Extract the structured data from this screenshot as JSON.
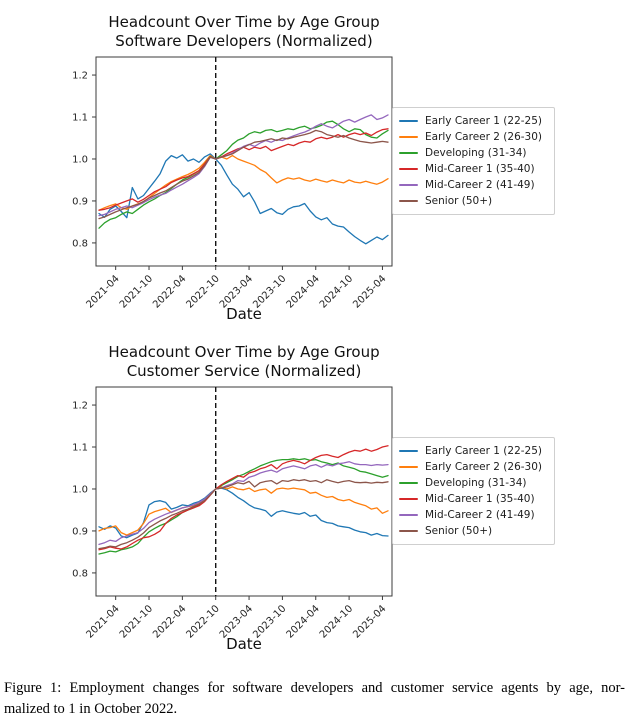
{
  "caption": {
    "line1": "Figure 1:  Employment changes for software developers and customer service agents by age, nor-",
    "line2": "malized to 1 in October 2022."
  },
  "chart_data": [
    {
      "type": "line",
      "title": "Headcount Over Time by Age Group",
      "subtitle": "Software Developers (Normalized)",
      "xlabel": "Date",
      "x_start": "2021-01",
      "x_end": "2025-05",
      "x_frequency": "monthly",
      "x_tick_labels": [
        "2021-04",
        "2021-10",
        "2022-04",
        "2022-10",
        "2023-04",
        "2023-10",
        "2024-04",
        "2024-10",
        "2025-04"
      ],
      "x_tick_indices": [
        3,
        9,
        15,
        21,
        27,
        33,
        39,
        45,
        51
      ],
      "y_tick_labels": [
        "0.8",
        "0.9",
        "1.0",
        "1.1",
        "1.2"
      ],
      "ylim": [
        0.745,
        1.243
      ],
      "grid": false,
      "legend_position": "center right",
      "vline": {
        "x_label": "2022-10",
        "x_index": 21,
        "style": "dashed",
        "color": "#111111"
      },
      "series": [
        {
          "name": "Early Career 1 (22-25)",
          "color": "#1f77b4",
          "values": [
            0.87,
            0.861,
            0.88,
            0.888,
            0.875,
            0.86,
            0.932,
            0.905,
            0.913,
            0.93,
            0.947,
            0.965,
            0.995,
            1.008,
            1.002,
            1.01,
            0.995,
            1.0,
            0.992,
            1.005,
            1.012,
            1.0,
            0.985,
            0.962,
            0.94,
            0.928,
            0.91,
            0.92,
            0.898,
            0.87,
            0.876,
            0.882,
            0.872,
            0.868,
            0.88,
            0.886,
            0.888,
            0.894,
            0.876,
            0.862,
            0.855,
            0.86,
            0.845,
            0.84,
            0.838,
            0.826,
            0.815,
            0.806,
            0.798,
            0.806,
            0.814,
            0.808,
            0.818
          ]
        },
        {
          "name": "Early Career 2 (26-30)",
          "color": "#ff7f0e",
          "values": [
            0.878,
            0.884,
            0.889,
            0.893,
            0.884,
            0.88,
            0.888,
            0.893,
            0.898,
            0.908,
            0.918,
            0.928,
            0.938,
            0.946,
            0.952,
            0.958,
            0.963,
            0.97,
            0.978,
            0.992,
            1.008,
            1.0,
            1.005,
            1.0,
            1.008,
            1.0,
            0.995,
            0.99,
            0.985,
            0.975,
            0.968,
            0.955,
            0.943,
            0.95,
            0.955,
            0.952,
            0.955,
            0.95,
            0.947,
            0.952,
            0.948,
            0.945,
            0.95,
            0.946,
            0.943,
            0.95,
            0.945,
            0.943,
            0.947,
            0.943,
            0.94,
            0.945,
            0.953
          ]
        },
        {
          "name": "Developing (31-34)",
          "color": "#2ca02c",
          "values": [
            0.835,
            0.848,
            0.856,
            0.86,
            0.868,
            0.874,
            0.87,
            0.88,
            0.89,
            0.898,
            0.905,
            0.913,
            0.92,
            0.93,
            0.94,
            0.95,
            0.956,
            0.964,
            0.972,
            0.988,
            1.006,
            1.0,
            1.01,
            1.02,
            1.035,
            1.045,
            1.05,
            1.06,
            1.065,
            1.062,
            1.068,
            1.07,
            1.065,
            1.068,
            1.072,
            1.07,
            1.075,
            1.078,
            1.072,
            1.075,
            1.08,
            1.088,
            1.09,
            1.082,
            1.072,
            1.065,
            1.072,
            1.07,
            1.058,
            1.052,
            1.05,
            1.06,
            1.068
          ]
        },
        {
          "name": "Mid-Career 1 (35-40)",
          "color": "#d62728",
          "values": [
            0.878,
            0.88,
            0.884,
            0.89,
            0.895,
            0.9,
            0.905,
            0.897,
            0.904,
            0.913,
            0.922,
            0.928,
            0.934,
            0.944,
            0.95,
            0.955,
            0.958,
            0.965,
            0.972,
            0.988,
            1.005,
            1.0,
            1.005,
            1.012,
            1.018,
            1.024,
            1.028,
            1.022,
            1.028,
            1.025,
            1.03,
            1.02,
            1.025,
            1.03,
            1.035,
            1.032,
            1.038,
            1.042,
            1.04,
            1.048,
            1.052,
            1.048,
            1.052,
            1.058,
            1.052,
            1.058,
            1.062,
            1.058,
            1.062,
            1.056,
            1.064,
            1.07,
            1.072
          ]
        },
        {
          "name": "Mid-Career 2 (41-49)",
          "color": "#9467bd",
          "values": [
            0.865,
            0.868,
            0.874,
            0.88,
            0.884,
            0.888,
            0.884,
            0.89,
            0.896,
            0.903,
            0.909,
            0.914,
            0.918,
            0.926,
            0.933,
            0.94,
            0.948,
            0.956,
            0.965,
            0.982,
            1.004,
            1.0,
            1.004,
            1.008,
            1.014,
            1.022,
            1.03,
            1.035,
            1.03,
            1.038,
            1.044,
            1.04,
            1.046,
            1.044,
            1.05,
            1.055,
            1.06,
            1.064,
            1.07,
            1.078,
            1.084,
            1.078,
            1.074,
            1.082,
            1.09,
            1.094,
            1.088,
            1.094,
            1.1,
            1.105,
            1.094,
            1.098,
            1.105
          ]
        },
        {
          "name": "Senior (50+)",
          "color": "#8c564b",
          "values": [
            0.858,
            0.862,
            0.868,
            0.874,
            0.879,
            0.884,
            0.888,
            0.892,
            0.899,
            0.907,
            0.913,
            0.919,
            0.924,
            0.932,
            0.94,
            0.947,
            0.952,
            0.96,
            0.968,
            0.984,
            1.004,
            1.0,
            1.004,
            1.008,
            1.012,
            1.02,
            1.028,
            1.034,
            1.04,
            1.042,
            1.045,
            1.048,
            1.044,
            1.05,
            1.048,
            1.052,
            1.055,
            1.058,
            1.062,
            1.068,
            1.065,
            1.058,
            1.055,
            1.052,
            1.056,
            1.05,
            1.046,
            1.042,
            1.04,
            1.038,
            1.04,
            1.042,
            1.04
          ]
        }
      ]
    },
    {
      "type": "line",
      "title": "Headcount Over Time by Age Group",
      "subtitle": "Customer Service (Normalized)",
      "xlabel": "Date",
      "x_start": "2021-01",
      "x_end": "2025-05",
      "x_frequency": "monthly",
      "x_tick_labels": [
        "2021-04",
        "2021-10",
        "2022-04",
        "2022-10",
        "2023-04",
        "2023-10",
        "2024-04",
        "2024-10",
        "2025-04"
      ],
      "x_tick_indices": [
        3,
        9,
        15,
        21,
        27,
        33,
        39,
        45,
        51
      ],
      "y_tick_labels": [
        "0.8",
        "0.9",
        "1.0",
        "1.1",
        "1.2"
      ],
      "ylim": [
        0.745,
        1.243
      ],
      "grid": false,
      "legend_position": "center right",
      "vline": {
        "x_label": "2022-10",
        "x_index": 21,
        "style": "dashed",
        "color": "#111111"
      },
      "series": [
        {
          "name": "Early Career 1 (22-25)",
          "color": "#1f77b4",
          "values": [
            0.91,
            0.904,
            0.912,
            0.907,
            0.888,
            0.884,
            0.89,
            0.895,
            0.92,
            0.962,
            0.97,
            0.972,
            0.968,
            0.952,
            0.956,
            0.962,
            0.96,
            0.966,
            0.97,
            0.978,
            0.99,
            1.0,
            1.002,
            0.998,
            0.99,
            0.98,
            0.972,
            0.962,
            0.955,
            0.952,
            0.948,
            0.935,
            0.945,
            0.948,
            0.945,
            0.942,
            0.94,
            0.944,
            0.935,
            0.938,
            0.925,
            0.92,
            0.918,
            0.912,
            0.91,
            0.908,
            0.902,
            0.898,
            0.896,
            0.89,
            0.894,
            0.889,
            0.888
          ]
        },
        {
          "name": "Early Career 2 (26-30)",
          "color": "#ff7f0e",
          "values": [
            0.9,
            0.906,
            0.908,
            0.912,
            0.896,
            0.89,
            0.896,
            0.902,
            0.918,
            0.94,
            0.946,
            0.95,
            0.954,
            0.944,
            0.95,
            0.955,
            0.958,
            0.96,
            0.965,
            0.975,
            0.988,
            1.0,
            1.005,
            1.0,
            1.005,
            1.0,
            0.998,
            1.002,
            0.994,
            0.998,
            1.0,
            0.99,
            1.0,
            1.002,
            1.0,
            1.002,
            1.0,
            0.998,
            0.99,
            0.992,
            0.985,
            0.98,
            0.982,
            0.975,
            0.972,
            0.975,
            0.968,
            0.964,
            0.96,
            0.952,
            0.955,
            0.942,
            0.948
          ]
        },
        {
          "name": "Developing (31-34)",
          "color": "#2ca02c",
          "values": [
            0.845,
            0.848,
            0.852,
            0.85,
            0.855,
            0.858,
            0.862,
            0.87,
            0.885,
            0.898,
            0.906,
            0.913,
            0.918,
            0.926,
            0.934,
            0.944,
            0.95,
            0.955,
            0.962,
            0.972,
            0.986,
            1.0,
            1.008,
            1.015,
            1.022,
            1.03,
            1.035,
            1.042,
            1.048,
            1.055,
            1.06,
            1.065,
            1.068,
            1.07,
            1.07,
            1.072,
            1.07,
            1.072,
            1.068,
            1.07,
            1.065,
            1.062,
            1.058,
            1.062,
            1.055,
            1.052,
            1.048,
            1.042,
            1.04,
            1.036,
            1.032,
            1.028,
            1.032
          ]
        },
        {
          "name": "Mid-Career 1 (35-40)",
          "color": "#d62728",
          "values": [
            0.855,
            0.858,
            0.862,
            0.859,
            0.857,
            0.862,
            0.87,
            0.878,
            0.884,
            0.886,
            0.892,
            0.9,
            0.918,
            0.93,
            0.938,
            0.944,
            0.95,
            0.955,
            0.96,
            0.97,
            0.985,
            1.0,
            1.01,
            1.018,
            1.025,
            1.032,
            1.028,
            1.038,
            1.042,
            1.048,
            1.052,
            1.058,
            1.048,
            1.06,
            1.065,
            1.068,
            1.065,
            1.06,
            1.068,
            1.075,
            1.08,
            1.082,
            1.078,
            1.075,
            1.082,
            1.088,
            1.092,
            1.09,
            1.095,
            1.09,
            1.094,
            1.1,
            1.103
          ]
        },
        {
          "name": "Mid-Career 2 (41-49)",
          "color": "#9467bd",
          "values": [
            0.868,
            0.872,
            0.878,
            0.875,
            0.884,
            0.888,
            0.892,
            0.896,
            0.906,
            0.92,
            0.928,
            0.934,
            0.94,
            0.945,
            0.95,
            0.955,
            0.958,
            0.962,
            0.968,
            0.976,
            0.988,
            1.0,
            1.002,
            1.008,
            1.012,
            1.02,
            1.018,
            1.028,
            1.032,
            1.038,
            1.042,
            1.045,
            1.04,
            1.048,
            1.052,
            1.055,
            1.052,
            1.048,
            1.055,
            1.058,
            1.052,
            1.058,
            1.055,
            1.06,
            1.062,
            1.065,
            1.06,
            1.058,
            1.058,
            1.056,
            1.058,
            1.057,
            1.058
          ]
        },
        {
          "name": "Senior (50+)",
          "color": "#8c564b",
          "values": [
            0.858,
            0.86,
            0.864,
            0.862,
            0.868,
            0.872,
            0.878,
            0.885,
            0.895,
            0.908,
            0.916,
            0.924,
            0.93,
            0.937,
            0.942,
            0.948,
            0.952,
            0.958,
            0.964,
            0.972,
            0.986,
            1.0,
            1.002,
            1.005,
            1.01,
            1.015,
            1.012,
            1.018,
            1.005,
            1.015,
            1.018,
            1.02,
            1.012,
            1.02,
            1.018,
            1.022,
            1.02,
            1.022,
            1.018,
            1.02,
            1.015,
            1.022,
            1.018,
            1.015,
            1.018,
            1.02,
            1.016,
            1.015,
            1.016,
            1.014,
            1.016,
            1.015,
            1.017
          ]
        }
      ]
    }
  ]
}
